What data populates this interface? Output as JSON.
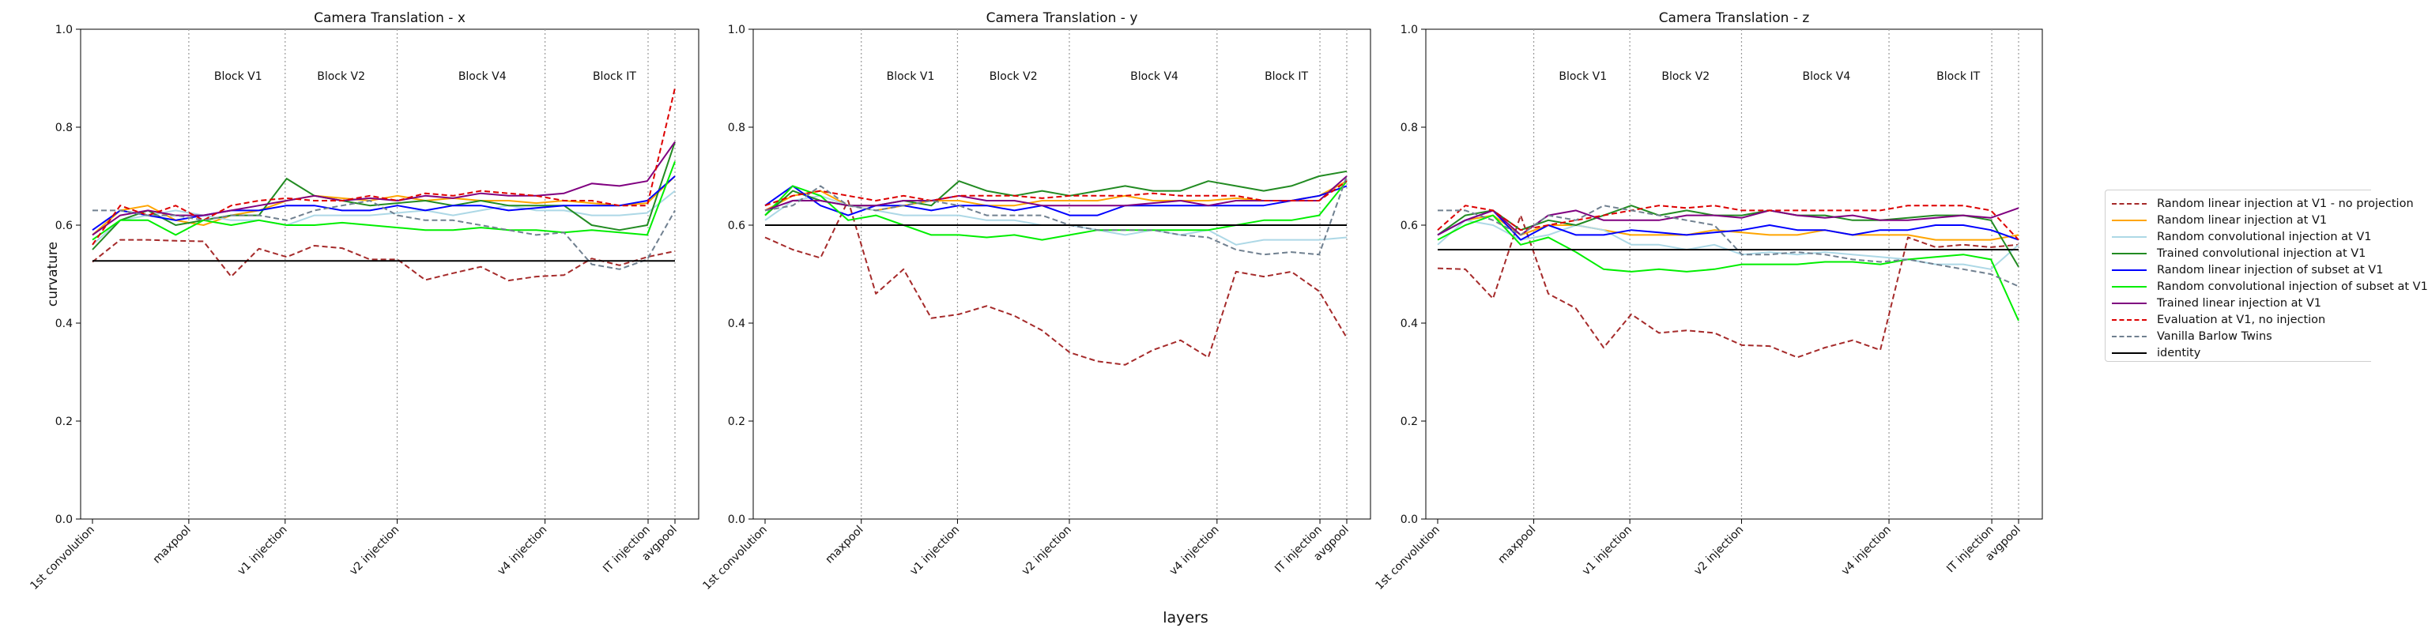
{
  "chart_data": {
    "type": "line",
    "xlabel": "layers",
    "layer_ticks": [
      "1st convolution",
      "maxpool",
      "v1 injection",
      "v2 injection",
      "v4 injection",
      "IT injection",
      "avgpool"
    ],
    "block_labels": [
      "Block V1",
      "Block V2",
      "Block V4",
      "Block IT"
    ],
    "y_ticks": [
      "0.0",
      "0.2",
      "0.4",
      "0.6",
      "0.8",
      "1.0"
    ],
    "ylim": [
      0,
      1
    ],
    "grid": false,
    "legend_placement": "right, outside",
    "legend": [
      {
        "label": "Random linear injection at V1 - no projection",
        "color": "#a52a2a",
        "dash": "dashed"
      },
      {
        "label": "Random linear injection at V1",
        "color": "#ffa500",
        "dash": "solid"
      },
      {
        "label": "Random convolutional injection at V1",
        "color": "#add8e6",
        "dash": "solid"
      },
      {
        "label": "Trained convolutional injection at V1",
        "color": "#228b22",
        "dash": "solid"
      },
      {
        "label": "Random linear injection of subset at V1",
        "color": "#0000ff",
        "dash": "solid"
      },
      {
        "label": "Random convolutional injection of subset at V1",
        "color": "#00ee00",
        "dash": "solid"
      },
      {
        "label": "Trained linear injection at V1",
        "color": "#800080",
        "dash": "solid"
      },
      {
        "label": "Evaluation at V1, no injection",
        "color": "#dd0000",
        "dash": "dashed"
      },
      {
        "label": "Vanilla Barlow Twins",
        "color": "#708090",
        "dash": "dashed"
      },
      {
        "label": "identity",
        "color": "#000000",
        "dash": "solid"
      }
    ],
    "panels": [
      {
        "title": "Camera Translation - x",
        "ylabel": "curvature",
        "series": [
          {
            "values": [
              0.525,
              0.57,
              0.57,
              0.568,
              0.567,
              0.495,
              0.552,
              0.535,
              0.558,
              0.553,
              0.53,
              0.53,
              0.488,
              0.502,
              0.515,
              0.487,
              0.495,
              0.498,
              0.532,
              0.518,
              0.535,
              0.547
            ]
          },
          {
            "values": [
              0.58,
              0.63,
              0.64,
              0.61,
              0.6,
              0.62,
              0.63,
              0.65,
              0.66,
              0.655,
              0.65,
              0.66,
              0.65,
              0.655,
              0.65,
              0.65,
              0.645,
              0.65,
              0.645,
              0.64,
              0.645,
              0.7
            ]
          },
          {
            "values": [
              0.56,
              0.61,
              0.62,
              0.63,
              0.62,
              0.61,
              0.61,
              0.6,
              0.62,
              0.62,
              0.62,
              0.625,
              0.63,
              0.62,
              0.63,
              0.64,
              0.63,
              0.63,
              0.62,
              0.62,
              0.625,
              0.67
            ]
          },
          {
            "values": [
              0.55,
              0.61,
              0.63,
              0.6,
              0.61,
              0.62,
              0.62,
              0.695,
              0.66,
              0.65,
              0.64,
              0.645,
              0.65,
              0.64,
              0.65,
              0.64,
              0.64,
              0.64,
              0.6,
              0.59,
              0.6,
              0.77
            ]
          },
          {
            "values": [
              0.59,
              0.63,
              0.62,
              0.61,
              0.62,
              0.63,
              0.63,
              0.64,
              0.64,
              0.63,
              0.63,
              0.64,
              0.63,
              0.64,
              0.64,
              0.63,
              0.635,
              0.64,
              0.64,
              0.64,
              0.65,
              0.7
            ]
          },
          {
            "values": [
              0.57,
              0.61,
              0.61,
              0.58,
              0.61,
              0.6,
              0.61,
              0.6,
              0.6,
              0.605,
              0.6,
              0.595,
              0.59,
              0.59,
              0.595,
              0.59,
              0.59,
              0.585,
              0.59,
              0.585,
              0.58,
              0.73
            ]
          },
          {
            "values": [
              0.58,
              0.62,
              0.63,
              0.62,
              0.62,
              0.63,
              0.64,
              0.65,
              0.66,
              0.65,
              0.655,
              0.65,
              0.66,
              0.655,
              0.665,
              0.66,
              0.66,
              0.665,
              0.685,
              0.68,
              0.69,
              0.77
            ]
          },
          {
            "values": [
              0.56,
              0.64,
              0.62,
              0.64,
              0.61,
              0.64,
              0.65,
              0.655,
              0.65,
              0.65,
              0.66,
              0.65,
              0.665,
              0.66,
              0.67,
              0.665,
              0.66,
              0.65,
              0.65,
              0.64,
              0.64,
              0.88
            ]
          },
          {
            "values": [
              0.63,
              0.63,
              0.62,
              0.62,
              0.61,
              0.62,
              0.62,
              0.61,
              0.63,
              0.64,
              0.65,
              0.62,
              0.61,
              0.61,
              0.6,
              0.59,
              0.58,
              0.585,
              0.52,
              0.51,
              0.53,
              0.63
            ]
          },
          {
            "values": [
              0.527,
              0.527,
              0.527,
              0.527,
              0.527,
              0.527,
              0.527,
              0.527,
              0.527,
              0.527,
              0.527,
              0.527,
              0.527,
              0.527,
              0.527,
              0.527,
              0.527,
              0.527,
              0.527,
              0.527,
              0.527,
              0.527
            ]
          }
        ]
      },
      {
        "title": "Camera Translation - y",
        "ylabel": "",
        "series": [
          {
            "values": [
              0.575,
              0.55,
              0.533,
              0.65,
              0.46,
              0.51,
              0.41,
              0.418,
              0.435,
              0.415,
              0.385,
              0.34,
              0.322,
              0.315,
              0.345,
              0.365,
              0.33,
              0.505,
              0.495,
              0.505,
              0.465,
              0.37
            ]
          },
          {
            "values": [
              0.63,
              0.66,
              0.67,
              0.64,
              0.63,
              0.64,
              0.65,
              0.65,
              0.64,
              0.64,
              0.65,
              0.65,
              0.65,
              0.66,
              0.65,
              0.65,
              0.65,
              0.655,
              0.65,
              0.65,
              0.66,
              0.69
            ]
          },
          {
            "values": [
              0.61,
              0.65,
              0.66,
              0.64,
              0.63,
              0.62,
              0.62,
              0.62,
              0.61,
              0.61,
              0.6,
              0.6,
              0.59,
              0.58,
              0.59,
              0.58,
              0.59,
              0.56,
              0.57,
              0.57,
              0.57,
              0.575
            ]
          },
          {
            "values": [
              0.62,
              0.67,
              0.65,
              0.64,
              0.64,
              0.65,
              0.64,
              0.69,
              0.67,
              0.66,
              0.67,
              0.66,
              0.67,
              0.68,
              0.67,
              0.67,
              0.69,
              0.68,
              0.67,
              0.68,
              0.7,
              0.71
            ]
          },
          {
            "values": [
              0.64,
              0.68,
              0.64,
              0.62,
              0.64,
              0.64,
              0.63,
              0.64,
              0.64,
              0.63,
              0.64,
              0.62,
              0.62,
              0.64,
              0.64,
              0.64,
              0.64,
              0.64,
              0.64,
              0.65,
              0.66,
              0.68
            ]
          },
          {
            "values": [
              0.62,
              0.68,
              0.66,
              0.61,
              0.62,
              0.6,
              0.58,
              0.58,
              0.575,
              0.58,
              0.57,
              0.58,
              0.59,
              0.59,
              0.59,
              0.59,
              0.59,
              0.6,
              0.61,
              0.61,
              0.62,
              0.69
            ]
          },
          {
            "values": [
              0.63,
              0.65,
              0.65,
              0.64,
              0.64,
              0.65,
              0.65,
              0.66,
              0.65,
              0.65,
              0.64,
              0.64,
              0.64,
              0.64,
              0.645,
              0.65,
              0.64,
              0.65,
              0.65,
              0.65,
              0.65,
              0.7
            ]
          },
          {
            "values": [
              0.64,
              0.66,
              0.67,
              0.66,
              0.65,
              0.66,
              0.65,
              0.66,
              0.66,
              0.66,
              0.655,
              0.66,
              0.66,
              0.66,
              0.665,
              0.66,
              0.66,
              0.66,
              0.65,
              0.65,
              0.65,
              0.69
            ]
          },
          {
            "values": [
              0.63,
              0.64,
              0.68,
              0.64,
              0.63,
              0.64,
              0.65,
              0.64,
              0.62,
              0.62,
              0.62,
              0.6,
              0.59,
              0.59,
              0.59,
              0.58,
              0.575,
              0.55,
              0.54,
              0.545,
              0.54,
              0.7
            ]
          },
          {
            "values": [
              0.6,
              0.6,
              0.6,
              0.6,
              0.6,
              0.6,
              0.6,
              0.6,
              0.6,
              0.6,
              0.6,
              0.6,
              0.6,
              0.6,
              0.6,
              0.6,
              0.6,
              0.6,
              0.6,
              0.6,
              0.6,
              0.6
            ]
          }
        ]
      },
      {
        "title": "Camera Translation - z",
        "ylabel": "",
        "series": [
          {
            "values": [
              0.512,
              0.51,
              0.45,
              0.62,
              0.46,
              0.43,
              0.35,
              0.418,
              0.38,
              0.385,
              0.38,
              0.355,
              0.353,
              0.33,
              0.35,
              0.365,
              0.345,
              0.575,
              0.555,
              0.56,
              0.555,
              0.56
            ]
          },
          {
            "values": [
              0.58,
              0.61,
              0.62,
              0.58,
              0.6,
              0.6,
              0.59,
              0.58,
              0.58,
              0.58,
              0.59,
              0.585,
              0.58,
              0.58,
              0.59,
              0.58,
              0.58,
              0.58,
              0.57,
              0.57,
              0.57,
              0.58
            ]
          },
          {
            "values": [
              0.56,
              0.61,
              0.6,
              0.57,
              0.58,
              0.6,
              0.59,
              0.56,
              0.56,
              0.55,
              0.56,
              0.54,
              0.545,
              0.54,
              0.545,
              0.54,
              0.535,
              0.53,
              0.52,
              0.52,
              0.51,
              0.56
            ]
          },
          {
            "values": [
              0.58,
              0.62,
              0.63,
              0.59,
              0.61,
              0.6,
              0.62,
              0.64,
              0.62,
              0.63,
              0.62,
              0.62,
              0.63,
              0.62,
              0.62,
              0.61,
              0.61,
              0.615,
              0.62,
              0.62,
              0.61,
              0.515
            ]
          },
          {
            "values": [
              0.58,
              0.61,
              0.63,
              0.57,
              0.6,
              0.58,
              0.58,
              0.59,
              0.585,
              0.58,
              0.585,
              0.59,
              0.6,
              0.59,
              0.59,
              0.58,
              0.59,
              0.59,
              0.6,
              0.6,
              0.59,
              0.57
            ]
          },
          {
            "values": [
              0.57,
              0.6,
              0.62,
              0.56,
              0.575,
              0.545,
              0.51,
              0.505,
              0.51,
              0.505,
              0.51,
              0.52,
              0.52,
              0.52,
              0.525,
              0.525,
              0.52,
              0.53,
              0.535,
              0.54,
              0.53,
              0.405
            ]
          },
          {
            "values": [
              0.58,
              0.61,
              0.63,
              0.58,
              0.62,
              0.63,
              0.61,
              0.61,
              0.61,
              0.62,
              0.62,
              0.615,
              0.63,
              0.62,
              0.615,
              0.62,
              0.61,
              0.61,
              0.615,
              0.62,
              0.615,
              0.635
            ]
          },
          {
            "values": [
              0.59,
              0.64,
              0.63,
              0.59,
              0.6,
              0.61,
              0.62,
              0.63,
              0.64,
              0.635,
              0.64,
              0.63,
              0.63,
              0.63,
              0.63,
              0.63,
              0.63,
              0.64,
              0.64,
              0.64,
              0.63,
              0.57
            ]
          },
          {
            "values": [
              0.63,
              0.63,
              0.61,
              0.58,
              0.62,
              0.61,
              0.64,
              0.63,
              0.62,
              0.61,
              0.6,
              0.54,
              0.54,
              0.545,
              0.54,
              0.53,
              0.525,
              0.53,
              0.52,
              0.51,
              0.5,
              0.475
            ]
          },
          {
            "values": [
              0.55,
              0.55,
              0.55,
              0.55,
              0.55,
              0.55,
              0.55,
              0.55,
              0.55,
              0.55,
              0.55,
              0.55,
              0.55,
              0.55,
              0.55,
              0.55,
              0.55,
              0.55,
              0.55,
              0.55,
              0.55,
              0.55
            ]
          }
        ]
      }
    ]
  }
}
